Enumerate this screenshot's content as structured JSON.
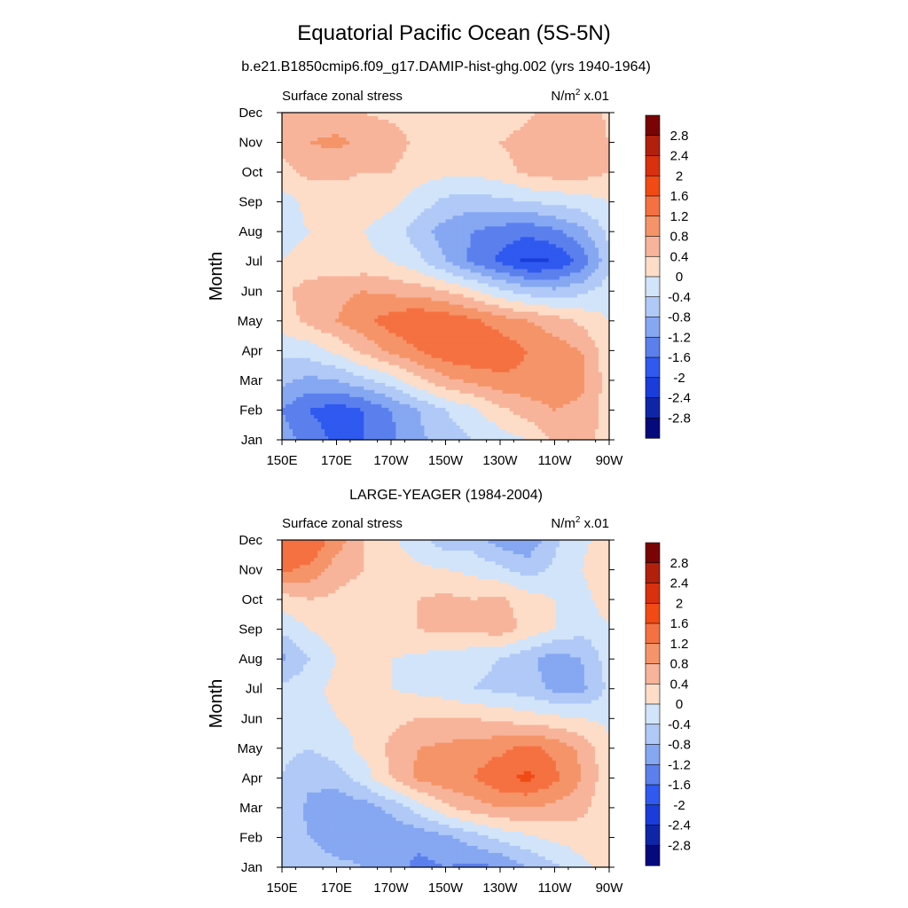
{
  "title": "Equatorial Pacific Ocean (5S-5N)",
  "chart_data": [
    {
      "type": "heatmap",
      "subtitle": "b.e21.B1850cmip6.f09_g17.DAMIP-hist-ghg.002 (yrs 1940-1964)",
      "left_label": "Surface zonal stress",
      "right_label_base": "N/m",
      "right_label_exp": "2",
      "right_label_suffix": " x.01",
      "ylabel": "Month",
      "x_ticks": [
        "150E",
        "170E",
        "170W",
        "150W",
        "130W",
        "110W",
        "90W"
      ],
      "x_lon_range": [
        150,
        270
      ],
      "y_ticks": [
        "Jan",
        "Feb",
        "Mar",
        "Apr",
        "May",
        "Jun",
        "Jul",
        "Aug",
        "Sep",
        "Oct",
        "Nov",
        "Dec"
      ],
      "x_lon": [
        150,
        160,
        170,
        180,
        190,
        200,
        210,
        220,
        230,
        240,
        250,
        260,
        270
      ],
      "z": [
        [
          -1.0,
          -1.4,
          -1.7,
          -1.6,
          -1.3,
          -0.9,
          -0.6,
          -0.4,
          -0.2,
          0.0,
          0.5,
          0.6,
          0.2
        ],
        [
          -1.2,
          -1.6,
          -1.8,
          -1.6,
          -1.2,
          -0.8,
          -0.4,
          -0.1,
          0.3,
          0.6,
          0.8,
          0.7,
          0.2
        ],
        [
          -0.7,
          -0.9,
          -0.8,
          -0.5,
          -0.2,
          0.3,
          0.7,
          0.9,
          1.1,
          1.1,
          1.1,
          0.9,
          0.2
        ],
        [
          -0.3,
          -0.2,
          0.1,
          0.5,
          0.9,
          1.2,
          1.5,
          1.6,
          1.5,
          1.2,
          1.0,
          0.8,
          0.1
        ],
        [
          0.2,
          0.5,
          0.8,
          1.1,
          1.4,
          1.6,
          1.5,
          1.3,
          1.0,
          0.8,
          0.6,
          0.3,
          0.0
        ],
        [
          0.3,
          0.6,
          0.7,
          0.8,
          0.7,
          0.6,
          0.4,
          0.1,
          -0.3,
          -0.6,
          -0.7,
          -0.5,
          -0.2
        ],
        [
          0.0,
          0.1,
          0.1,
          0.1,
          0.0,
          -0.3,
          -0.8,
          -1.3,
          -1.7,
          -2.1,
          -2.0,
          -1.5,
          -0.5
        ],
        [
          -0.1,
          0.0,
          0.1,
          0.0,
          -0.2,
          -0.6,
          -1.0,
          -1.2,
          -1.4,
          -1.5,
          -1.3,
          -0.9,
          -0.3
        ],
        [
          -0.2,
          0.1,
          0.2,
          0.2,
          0.1,
          -0.2,
          -0.5,
          -0.6,
          -0.5,
          -0.4,
          -0.3,
          -0.2,
          0.0
        ],
        [
          0.3,
          0.5,
          0.5,
          0.4,
          0.4,
          0.2,
          0.1,
          0.1,
          0.2,
          0.5,
          0.6,
          0.6,
          0.4
        ],
        [
          0.5,
          0.8,
          0.9,
          0.7,
          0.6,
          0.3,
          0.1,
          0.2,
          0.4,
          0.6,
          0.7,
          0.7,
          0.4
        ],
        [
          0.4,
          0.5,
          0.5,
          0.4,
          0.3,
          0.2,
          0.1,
          0.0,
          0.1,
          0.3,
          0.6,
          0.7,
          0.3
        ]
      ]
    },
    {
      "type": "heatmap",
      "subtitle": "LARGE-YEAGER (1984-2004)",
      "left_label": "Surface zonal stress",
      "right_label_base": "N/m",
      "right_label_exp": "2",
      "right_label_suffix": " x.01",
      "ylabel": "Month",
      "x_ticks": [
        "150E",
        "170E",
        "170W",
        "150W",
        "130W",
        "110W",
        "90W"
      ],
      "x_lon_range": [
        150,
        270
      ],
      "y_ticks": [
        "Jan",
        "Feb",
        "Mar",
        "Apr",
        "May",
        "Jun",
        "Jul",
        "Aug",
        "Sep",
        "Oct",
        "Nov",
        "Dec"
      ],
      "x_lon": [
        150,
        160,
        170,
        180,
        190,
        200,
        210,
        220,
        230,
        240,
        250,
        260,
        270
      ],
      "z": [
        [
          -0.4,
          -0.6,
          -0.7,
          -0.8,
          -1.0,
          -1.3,
          -1.2,
          -1.3,
          -1.2,
          -0.8,
          -0.5,
          -0.1,
          0.2
        ],
        [
          -0.5,
          -0.8,
          -1.0,
          -1.0,
          -1.1,
          -1.1,
          -0.9,
          -0.6,
          -0.3,
          -0.1,
          0.1,
          0.2,
          0.1
        ],
        [
          -0.5,
          -0.9,
          -1.1,
          -1.0,
          -0.7,
          -0.2,
          0.3,
          0.6,
          0.8,
          0.8,
          0.7,
          0.5,
          0.1
        ],
        [
          -0.4,
          -0.7,
          -0.6,
          -0.2,
          0.4,
          0.9,
          1.1,
          1.2,
          1.5,
          1.7,
          1.3,
          0.8,
          0.1
        ],
        [
          -0.3,
          -0.4,
          -0.2,
          0.1,
          0.5,
          0.8,
          0.9,
          1.0,
          1.1,
          1.3,
          1.1,
          0.7,
          0.1
        ],
        [
          -0.2,
          -0.2,
          0.0,
          0.1,
          0.3,
          0.4,
          0.4,
          0.4,
          0.3,
          0.2,
          0.1,
          0.0,
          -0.1
        ],
        [
          -0.3,
          -0.1,
          0.1,
          0.1,
          0.0,
          -0.1,
          -0.2,
          -0.4,
          -0.5,
          -0.6,
          -0.9,
          -0.9,
          -0.3
        ],
        [
          -0.9,
          -0.4,
          0.0,
          0.1,
          0.0,
          -0.1,
          -0.2,
          -0.3,
          -0.4,
          -0.7,
          -1.0,
          -0.8,
          -0.2
        ],
        [
          -0.3,
          0.0,
          0.2,
          0.2,
          0.3,
          0.4,
          0.5,
          0.5,
          0.6,
          0.3,
          0.0,
          -0.3,
          -0.1
        ],
        [
          0.2,
          0.4,
          0.3,
          0.2,
          0.3,
          0.4,
          0.5,
          0.4,
          0.5,
          0.2,
          0.0,
          -0.2,
          0.3
        ],
        [
          1.3,
          1.1,
          0.6,
          0.4,
          0.2,
          0.1,
          0.0,
          -0.1,
          -0.3,
          -0.6,
          -0.3,
          0.0,
          0.4
        ],
        [
          1.4,
          1.6,
          1.0,
          0.4,
          0.1,
          -0.3,
          -0.6,
          -0.6,
          -1.0,
          -1.1,
          -0.5,
          -0.1,
          0.2
        ]
      ]
    }
  ],
  "colorbar": {
    "labels": [
      "2.8",
      "2.4",
      "2",
      "1.6",
      "1.2",
      "0.8",
      "0.4",
      "0",
      "-0.4",
      "-0.8",
      "-1.2",
      "-1.6",
      "-2",
      "-2.4",
      "-2.8"
    ],
    "levels": [
      -3.2,
      -2.8,
      -2.4,
      -2.0,
      -1.6,
      -1.2,
      -0.8,
      -0.4,
      0.0,
      0.4,
      0.8,
      1.2,
      1.6,
      2.0,
      2.4,
      2.8,
      3.2
    ],
    "colors_top_to_bottom": [
      "#7a0403",
      "#b2200c",
      "#d9300d",
      "#f24a14",
      "#f57141",
      "#f59468",
      "#f7b49a",
      "#fdddc8",
      "#d2e4f9",
      "#b0c9f7",
      "#86a7f2",
      "#5b80ee",
      "#2f59ef",
      "#1a3cdb",
      "#0f25a7",
      "#04097b"
    ]
  }
}
